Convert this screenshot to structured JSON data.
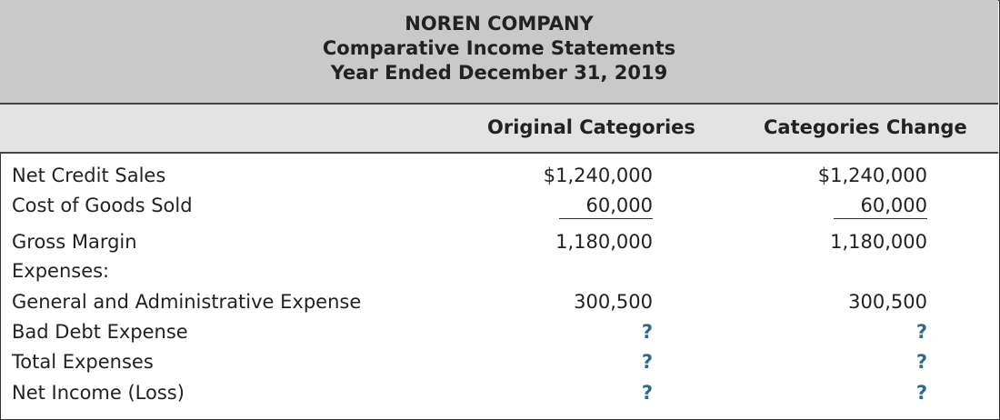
{
  "header": {
    "company": "NOREN COMPANY",
    "statement": "Comparative Income Statements",
    "period": "Year Ended December 31, 2019"
  },
  "columns": [
    "Original Categories",
    "Categories Change"
  ],
  "accent_color": "#2e6a8e",
  "rows": [
    {
      "label": "Net Credit Sales",
      "original": "$1,240,000",
      "change": "$1,240,000"
    },
    {
      "label": "Cost of Goods Sold",
      "original": "60,000",
      "change": "60,000",
      "underline": true
    },
    {
      "label": "Gross Margin",
      "original": "1,180,000",
      "change": "1,180,000"
    },
    {
      "label": "Expenses:",
      "original": "",
      "change": ""
    },
    {
      "label": "General and Administrative Expense",
      "original": "300,500",
      "change": "300,500"
    },
    {
      "label": "Bad Debt Expense",
      "original": "?",
      "change": "?",
      "unknown": true
    },
    {
      "label": "Total Expenses",
      "original": "?",
      "change": "?",
      "unknown": true
    },
    {
      "label": "Net Income (Loss)",
      "original": "?",
      "change": "?",
      "unknown": true
    }
  ]
}
